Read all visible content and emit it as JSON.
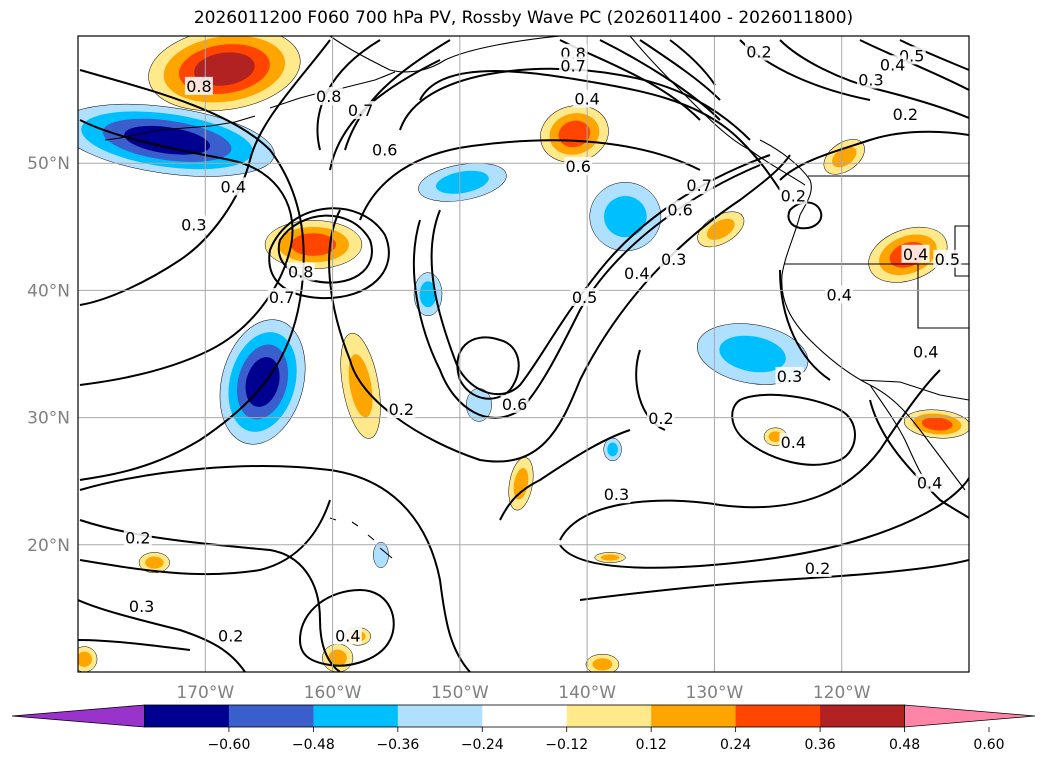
{
  "title": "2026011200 F060 700 hPa PV, Rossby Wave PC (2026011400 - 2026011800)",
  "chart_data": {
    "type": "heatmap",
    "title": "2026011200 F060 700 hPa PV, Rossby Wave PC (2026011400 - 2026011800)",
    "xlim": [
      -180,
      -110
    ],
    "ylim": [
      10,
      60
    ],
    "grid": true,
    "lat_ticks": [
      {
        "value": 50,
        "label": "50°N"
      },
      {
        "value": 40,
        "label": "40°N"
      },
      {
        "value": 30,
        "label": "30°N"
      },
      {
        "value": 20,
        "label": "20°N"
      }
    ],
    "lon_ticks": [
      {
        "value": -170,
        "label": "170°W"
      },
      {
        "value": -160,
        "label": "160°W"
      },
      {
        "value": -150,
        "label": "150°W"
      },
      {
        "value": -140,
        "label": "140°W"
      },
      {
        "value": -130,
        "label": "130°W"
      },
      {
        "value": -120,
        "label": "120°W"
      }
    ],
    "colorbar": {
      "extend": "both",
      "colors": [
        "#9933cc",
        "#000090",
        "#3a5fcd",
        "#00bfff",
        "#b0e0ff",
        "#ffffff",
        "#ffe98a",
        "#ffa500",
        "#ff4500",
        "#b22222",
        "#ff85a8"
      ],
      "tick_labels": [
        "−0.60",
        "−0.48",
        "−0.36",
        "−0.24",
        "−0.12",
        "0.12",
        "0.24",
        "0.36",
        "0.48",
        "0.60"
      ]
    },
    "contour_labels": [
      {
        "text": "0.8",
        "lon": -170.5,
        "lat": 56
      },
      {
        "text": "0.8",
        "lon": -160.3,
        "lat": 55.2
      },
      {
        "text": "0.7",
        "lon": -157.8,
        "lat": 54.1
      },
      {
        "text": "0.6",
        "lon": -155.9,
        "lat": 51.0
      },
      {
        "text": "0.4",
        "lon": -167.8,
        "lat": 48.1
      },
      {
        "text": "0.3",
        "lon": -170.9,
        "lat": 45.1
      },
      {
        "text": "0.8",
        "lon": -162.5,
        "lat": 41.4
      },
      {
        "text": "0.7",
        "lon": -164.0,
        "lat": 39.4
      },
      {
        "text": "0.8",
        "lon": -141.1,
        "lat": 58.6
      },
      {
        "text": "0.7",
        "lon": -141.1,
        "lat": 57.6
      },
      {
        "text": "0.4",
        "lon": -140.0,
        "lat": 55.0
      },
      {
        "text": "0.6",
        "lon": -140.7,
        "lat": 49.7
      },
      {
        "text": "0.7",
        "lon": -131.2,
        "lat": 48.2
      },
      {
        "text": "0.6",
        "lon": -132.7,
        "lat": 46.3
      },
      {
        "text": "0.5",
        "lon": -140.2,
        "lat": 39.4
      },
      {
        "text": "0.4",
        "lon": -136.1,
        "lat": 41.3
      },
      {
        "text": "0.3",
        "lon": -133.2,
        "lat": 42.4
      },
      {
        "text": "0.6",
        "lon": -145.7,
        "lat": 31.0
      },
      {
        "text": "0.2",
        "lon": -154.6,
        "lat": 30.6
      },
      {
        "text": "0.2",
        "lon": -134.2,
        "lat": 29.9
      },
      {
        "text": "0.2",
        "lon": -126.5,
        "lat": 58.7
      },
      {
        "text": "0.5",
        "lon": -114.5,
        "lat": 58.4
      },
      {
        "text": "0.4",
        "lon": -116.0,
        "lat": 57.7
      },
      {
        "text": "0.3",
        "lon": -117.7,
        "lat": 56.5
      },
      {
        "text": "0.2",
        "lon": -115.0,
        "lat": 53.8
      },
      {
        "text": "0.2",
        "lon": -123.8,
        "lat": 47.4
      },
      {
        "text": "0.4",
        "lon": -114.2,
        "lat": 42.8
      },
      {
        "text": "0.5",
        "lon": -111.7,
        "lat": 42.4
      },
      {
        "text": "0.4",
        "lon": -120.2,
        "lat": 39.6
      },
      {
        "text": "0.4",
        "lon": -113.4,
        "lat": 35.1
      },
      {
        "text": "0.3",
        "lon": -124.1,
        "lat": 33.2
      },
      {
        "text": "0.4",
        "lon": -123.8,
        "lat": 28.0
      },
      {
        "text": "0.4",
        "lon": -113.1,
        "lat": 24.8
      },
      {
        "text": "0.3",
        "lon": -137.7,
        "lat": 23.9
      },
      {
        "text": "0.2",
        "lon": -121.9,
        "lat": 18.1
      },
      {
        "text": "0.2",
        "lon": -175.3,
        "lat": 20.5
      },
      {
        "text": "0.3",
        "lon": -175.0,
        "lat": 15.1
      },
      {
        "text": "0.2",
        "lon": -168.0,
        "lat": 12.8
      },
      {
        "text": "0.4",
        "lon": -158.8,
        "lat": 12.8
      }
    ]
  },
  "blobs": [
    {
      "value": 0.55,
      "lon": -168.5,
      "lat": 57.4,
      "rx": 6.0,
      "ry": 3.2,
      "rot": -8
    },
    {
      "value": -0.55,
      "lon": -173.0,
      "lat": 51.8,
      "rx": 8.5,
      "ry": 2.6,
      "rot": 8
    },
    {
      "value": -0.5,
      "lon": -165.5,
      "lat": 32.8,
      "rx": 3.2,
      "ry": 5.0,
      "rot": 15
    },
    {
      "value": 0.45,
      "lon": -161.5,
      "lat": 43.6,
      "rx": 3.8,
      "ry": 1.9,
      "rot": 0
    },
    {
      "value": 0.3,
      "lon": -157.8,
      "lat": 32.5,
      "rx": 1.4,
      "ry": 4.2,
      "rot": -10
    },
    {
      "value": -0.35,
      "lon": -149.8,
      "lat": 48.5,
      "rx": 3.5,
      "ry": 1.4,
      "rot": -10
    },
    {
      "value": -0.35,
      "lon": -152.5,
      "lat": 39.7,
      "rx": 1.1,
      "ry": 1.7,
      "rot": 0
    },
    {
      "value": 0.4,
      "lon": -141.0,
      "lat": 52.3,
      "rx": 2.7,
      "ry": 2.2,
      "rot": -15
    },
    {
      "value": -0.3,
      "lon": -137.0,
      "lat": 45.8,
      "rx": 2.8,
      "ry": 2.7,
      "rot": 0
    },
    {
      "value": -0.25,
      "lon": -127.0,
      "lat": 35.0,
      "rx": 4.4,
      "ry": 2.3,
      "rot": 10
    },
    {
      "value": 0.3,
      "lon": -129.5,
      "lat": 44.8,
      "rx": 2.0,
      "ry": 1.1,
      "rot": -30
    },
    {
      "value": 0.3,
      "lon": -119.8,
      "lat": 50.5,
      "rx": 1.8,
      "ry": 1.1,
      "rot": -35
    },
    {
      "value": 0.4,
      "lon": -114.8,
      "lat": 42.8,
      "rx": 3.2,
      "ry": 2.0,
      "rot": -20
    },
    {
      "value": 0.4,
      "lon": -112.5,
      "lat": 29.5,
      "rx": 2.6,
      "ry": 1.1,
      "rot": 5
    },
    {
      "value": 0.3,
      "lon": -145.2,
      "lat": 24.8,
      "rx": 0.9,
      "ry": 2.1,
      "rot": 10
    },
    {
      "value": 0.25,
      "lon": -125.2,
      "lat": 28.5,
      "rx": 0.9,
      "ry": 0.7,
      "rot": 0
    },
    {
      "value": 0.25,
      "lon": -138.2,
      "lat": 19.0,
      "rx": 1.2,
      "ry": 0.4,
      "rot": 0
    },
    {
      "value": -0.2,
      "lon": -148.5,
      "lat": 31.0,
      "rx": 1.0,
      "ry": 1.3,
      "rot": 0
    },
    {
      "value": -0.25,
      "lon": -138.0,
      "lat": 27.5,
      "rx": 0.7,
      "ry": 0.9,
      "rot": 0
    },
    {
      "value": -0.2,
      "lon": -156.2,
      "lat": 19.2,
      "rx": 0.6,
      "ry": 1.0,
      "rot": 0
    },
    {
      "value": 0.25,
      "lon": -174.0,
      "lat": 18.6,
      "rx": 1.2,
      "ry": 0.8,
      "rot": 0
    },
    {
      "value": 0.3,
      "lon": -159.6,
      "lat": 11.1,
      "rx": 1.2,
      "ry": 1.1,
      "rot": 0
    },
    {
      "value": 0.3,
      "lon": -158.0,
      "lat": 12.8,
      "rx": 1.0,
      "ry": 0.7,
      "rot": 0
    },
    {
      "value": 0.25,
      "lon": -138.8,
      "lat": 10.6,
      "rx": 1.3,
      "ry": 0.8,
      "rot": 0
    },
    {
      "value": 0.25,
      "lon": -179.5,
      "lat": 11.0,
      "rx": 1.0,
      "ry": 1.0,
      "rot": 0
    }
  ]
}
